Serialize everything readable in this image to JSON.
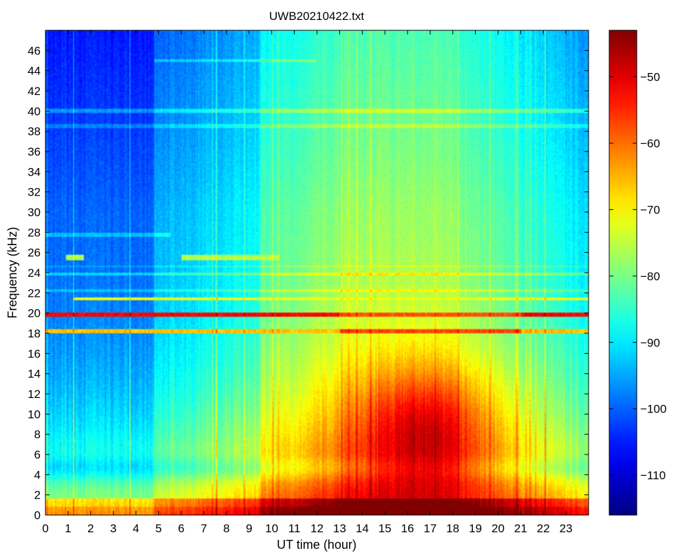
{
  "chart_data": {
    "type": "heatmap",
    "title": "UWB20210422.txt",
    "xlabel": "UT time (hour)",
    "ylabel": "Frequency (kHz)",
    "xlim": [
      0,
      24
    ],
    "ylim": [
      0,
      48
    ],
    "x_ticks": [
      "0",
      "1",
      "2",
      "3",
      "4",
      "5",
      "6",
      "7",
      "8",
      "9",
      "10",
      "11",
      "12",
      "13",
      "14",
      "15",
      "16",
      "17",
      "18",
      "19",
      "20",
      "21",
      "22",
      "23"
    ],
    "y_ticks": [
      "0",
      "2",
      "4",
      "6",
      "8",
      "10",
      "12",
      "14",
      "16",
      "18",
      "20",
      "22",
      "24",
      "26",
      "28",
      "30",
      "32",
      "34",
      "36",
      "38",
      "40",
      "42",
      "44",
      "46"
    ],
    "colorbar": {
      "colormap": "jet",
      "range": [
        -116,
        -43
      ],
      "ticks": [
        "−50",
        "−60",
        "−70",
        "−80",
        "−90",
        "−100",
        "−110"
      ]
    },
    "features": {
      "strong_lines_khz": [
        19.8,
        18.2
      ],
      "weak_lines_khz": [
        21.4,
        22.2,
        23.9,
        24.6,
        25.5,
        27.8,
        38.5,
        40.0,
        45.0
      ],
      "intense_region": {
        "hours": [
          13.5,
          20.0
        ],
        "khz": [
          3.5,
          14.0
        ]
      }
    }
  }
}
